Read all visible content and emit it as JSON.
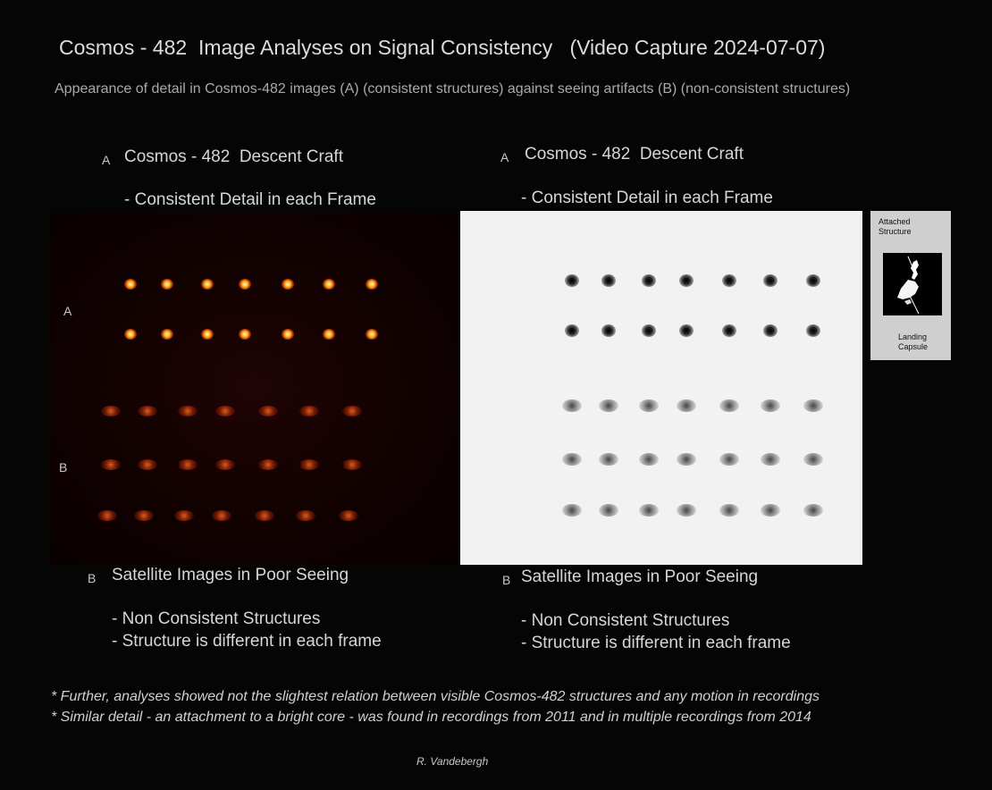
{
  "title": "Cosmos - 482  Image Analyses on Signal Consistency   (Video Capture 2024-07-07)",
  "subtitle": "Appearance of detail in Cosmos-482 images (A) (consistent structures) against seeing artifacts (B) (non-consistent structures)",
  "left": {
    "header_a": {
      "letter": "A",
      "title": "Cosmos - 482  Descent Craft",
      "detail": "- Consistent Detail in each Frame"
    },
    "row_label_a": "A",
    "row_label_b": "B",
    "header_b": {
      "letter": "B",
      "title": "Satellite Images in Poor Seeing",
      "detail1": "- Non Consistent Structures",
      "detail2": "- Structure is different in each frame"
    }
  },
  "right": {
    "header_a": {
      "letter": "A",
      "title": "Cosmos - 482  Descent Craft",
      "detail": "- Consistent Detail in each Frame"
    },
    "header_b": {
      "letter": "B",
      "title": "Satellite Images in Poor Seeing",
      "detail1": "- Non Consistent Structures",
      "detail2": "- Structure is different in each frame"
    }
  },
  "inset": {
    "label_top_1": "Attached",
    "label_top_2": "Structure",
    "label_bottom_1": "Landing",
    "label_bottom_2": "Capsule"
  },
  "notes": [
    "* Further, analyses showed not the slightest relation between visible Cosmos-482 structures and any motion in recordings",
    "* Similar detail - an attachment to a bright core - was found in recordings from 2011 and in multiple recordings from 2014"
  ],
  "credit": "R. Vandebergh"
}
